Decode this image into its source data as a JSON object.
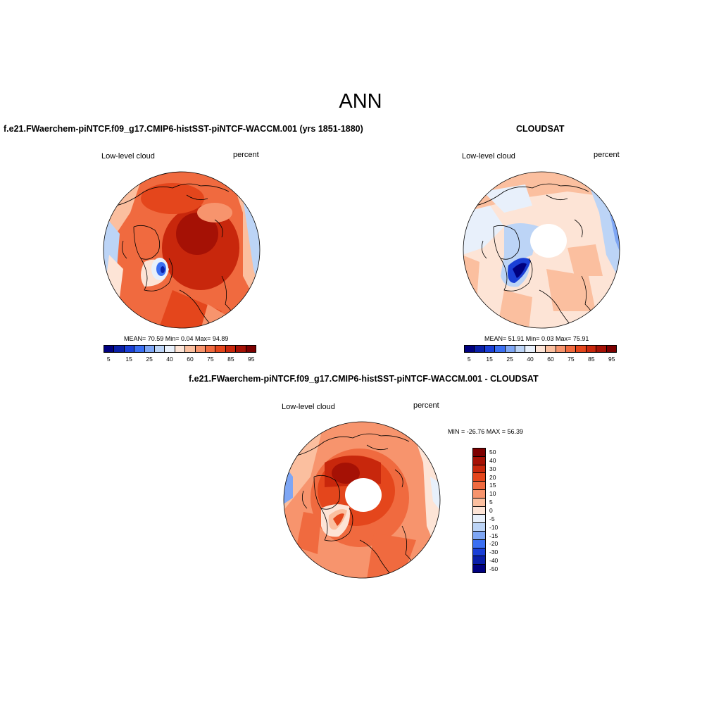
{
  "title": "ANN",
  "panels": {
    "model": {
      "title": "f.e21.FWaerchem-piNTCF.f09_g17.CMIP6-histSST-piNTCF-WACCM.001 (yrs 1851-1880)",
      "variable": "Low-level cloud",
      "units": "percent",
      "stats": "MEAN=  70.59  Min=   0.04  Max=  94.89"
    },
    "obs": {
      "title": "CLOUDSAT",
      "variable": "Low-level cloud",
      "units": "percent",
      "stats": "MEAN=  51.91  Min=   0.03  Max=  75.91"
    },
    "diff": {
      "title": "f.e21.FWaerchem-piNTCF.f09_g17.CMIP6-histSST-piNTCF-WACCM.001 - CLOUDSAT",
      "variable": "Low-level cloud",
      "units": "percent",
      "stats": "MIN = -26.76 MAX =  56.39"
    }
  },
  "colorbar_abs": {
    "labels": [
      "5",
      "15",
      "25",
      "40",
      "60",
      "75",
      "85",
      "95"
    ],
    "colors": [
      "#00007f",
      "#0a1fa8",
      "#1a3fd6",
      "#3b6ff2",
      "#7ea6f4",
      "#bcd4f6",
      "#e8f0fb",
      "#fde4d6",
      "#fbbf9f",
      "#f7946d",
      "#f06a3f",
      "#e4461c",
      "#c8270c",
      "#a51105",
      "#7c0000"
    ]
  },
  "colorbar_diff": {
    "labels": [
      "50",
      "40",
      "30",
      "20",
      "15",
      "10",
      "5",
      "0",
      "-5",
      "-10",
      "-15",
      "-20",
      "-30",
      "-40",
      "-50"
    ],
    "colors": [
      "#7c0000",
      "#a51105",
      "#c8270c",
      "#e4461c",
      "#f06a3f",
      "#f7946d",
      "#fbbf9f",
      "#fde4d6",
      "#e8f0fb",
      "#bcd4f6",
      "#7ea6f4",
      "#3b6ff2",
      "#1a3fd6",
      "#0a1fa8",
      "#00007f"
    ]
  }
}
